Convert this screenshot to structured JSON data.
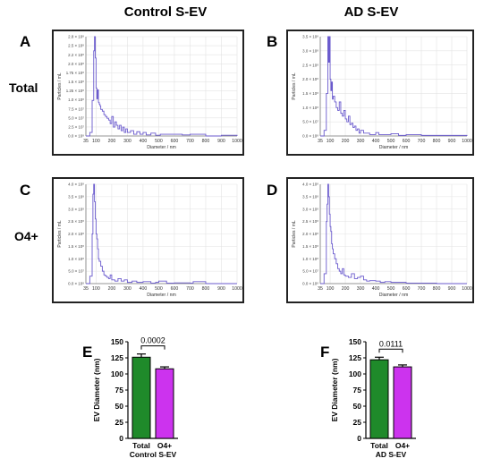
{
  "headers": {
    "control": "Control S-EV",
    "ad": "AD S-EV"
  },
  "rows": {
    "total": "Total",
    "o4": "O4+"
  },
  "panel_letters": {
    "a": "A",
    "b": "B",
    "c": "C",
    "d": "D",
    "e": "E",
    "f": "F"
  },
  "colors": {
    "trace": "#6a5acd",
    "grid": "#e3e3e3",
    "total_bar": "#1f8a2a",
    "o4_bar": "#cc33ee"
  },
  "chart_data": [
    {
      "id": "A",
      "type": "line",
      "xlabel": "Diameter / nm",
      "ylabel": "Particles / mL",
      "x_ticks": [
        35,
        100,
        200,
        300,
        400,
        500,
        600,
        700,
        800,
        900,
        1000
      ],
      "y_ticks": [
        "0.0 × 10⁸",
        "2.5 × 10⁷",
        "5.0 × 10⁷",
        "7.5 × 10⁷",
        "1.0 × 10⁸",
        "1.25 × 10⁸",
        "1.5 × 10⁸",
        "1.75 × 10⁸",
        "2.0 × 10⁸",
        "2.2 × 10⁸",
        "2.5 × 10⁸",
        "2.8 × 10⁸"
      ],
      "ylim": [
        0,
        2.8
      ],
      "x": [
        35,
        60,
        75,
        85,
        90,
        95,
        100,
        105,
        110,
        115,
        120,
        125,
        130,
        140,
        150,
        160,
        170,
        180,
        190,
        200,
        210,
        220,
        230,
        240,
        250,
        260,
        270,
        280,
        290,
        300,
        320,
        340,
        360,
        380,
        400,
        420,
        450,
        480,
        510,
        560,
        650,
        700,
        800,
        900,
        1000
      ],
      "y": [
        0,
        0.1,
        1.0,
        2.4,
        2.8,
        2.2,
        1.35,
        1.05,
        1.3,
        0.95,
        0.9,
        0.85,
        0.75,
        0.7,
        0.6,
        0.55,
        0.5,
        0.45,
        0.35,
        0.55,
        0.25,
        0.4,
        0.3,
        0.2,
        0.3,
        0.15,
        0.25,
        0.1,
        0.2,
        0.1,
        0.15,
        0.05,
        0.12,
        0.05,
        0.1,
        0.03,
        0.08,
        0.02,
        0.05,
        0.05,
        0.03,
        0.05,
        0.0,
        0.02,
        0.0
      ]
    },
    {
      "id": "B",
      "type": "line",
      "xlabel": "Diameter / nm",
      "ylabel": "Particles / mL",
      "x_ticks": [
        35,
        100,
        200,
        300,
        400,
        500,
        600,
        700,
        800,
        900,
        1000
      ],
      "y_ticks": [
        "0.0 × 10⁸",
        "5.0 × 10⁷",
        "1.0 × 10⁸",
        "1.5 × 10⁸",
        "2.0 × 10⁸",
        "2.5 × 10⁸",
        "3.0 × 10⁸",
        "3.5 × 10⁸"
      ],
      "ylim": [
        0,
        3.5
      ],
      "x": [
        35,
        60,
        75,
        85,
        90,
        95,
        100,
        105,
        110,
        115,
        120,
        130,
        140,
        150,
        160,
        170,
        180,
        190,
        200,
        210,
        220,
        230,
        240,
        250,
        260,
        270,
        280,
        290,
        300,
        320,
        340,
        360,
        400,
        420,
        450,
        500,
        550,
        600,
        700,
        800,
        1000
      ],
      "y": [
        0,
        0.2,
        1.5,
        3.5,
        2.6,
        3.5,
        2.0,
        1.6,
        1.9,
        1.3,
        1.4,
        1.2,
        1.0,
        0.9,
        1.2,
        0.8,
        0.7,
        0.9,
        0.6,
        0.5,
        0.7,
        0.4,
        0.45,
        0.3,
        0.35,
        0.2,
        0.25,
        0.1,
        0.2,
        0.1,
        0.1,
        0.05,
        0.12,
        0.05,
        0.05,
        0.08,
        0.02,
        0.05,
        0.02,
        0.02,
        0.0
      ]
    },
    {
      "id": "C",
      "type": "line",
      "xlabel": "Diameter / nm",
      "ylabel": "Particles / mL",
      "x_ticks": [
        35,
        100,
        200,
        300,
        400,
        500,
        600,
        700,
        800,
        900,
        1000
      ],
      "y_ticks": [
        "0.0 × 10⁸",
        "5.0 × 10⁷",
        "1.0 × 10⁸",
        "1.5 × 10⁸",
        "2.0 × 10⁸",
        "2.5 × 10⁸",
        "3.0 × 10⁸",
        "3.5 × 10⁸",
        "4.0 × 10⁸"
      ],
      "ylim": [
        0,
        4.0
      ],
      "x": [
        35,
        60,
        75,
        80,
        85,
        90,
        95,
        100,
        105,
        110,
        115,
        120,
        130,
        140,
        150,
        160,
        170,
        180,
        190,
        200,
        220,
        240,
        260,
        280,
        300,
        330,
        360,
        400,
        450,
        480,
        500,
        550,
        600,
        700,
        720,
        800,
        1000
      ],
      "y": [
        0,
        0.3,
        2.0,
        3.6,
        4.0,
        3.3,
        2.6,
        2.0,
        1.8,
        1.4,
        1.0,
        0.9,
        0.7,
        0.5,
        0.35,
        0.3,
        0.25,
        0.2,
        0.35,
        0.15,
        0.1,
        0.2,
        0.1,
        0.15,
        0.05,
        0.1,
        0.05,
        0.08,
        0.02,
        0.05,
        0.1,
        0.02,
        0.03,
        0.02,
        0.08,
        0.0,
        0.0
      ]
    },
    {
      "id": "D",
      "type": "line",
      "xlabel": "Diameter / nm",
      "ylabel": "Particles / mL",
      "x_ticks": [
        35,
        100,
        200,
        300,
        400,
        500,
        600,
        700,
        800,
        900,
        1000
      ],
      "y_ticks": [
        "0.0 × 10⁸",
        "5.0 × 10⁷",
        "1.0 × 10⁸",
        "1.5 × 10⁸",
        "2.0 × 10⁸",
        "2.5 × 10⁸",
        "3.0 × 10⁸",
        "3.5 × 10⁸",
        "4.0 × 10⁸"
      ],
      "ylim": [
        0,
        4.0
      ],
      "x": [
        35,
        60,
        75,
        80,
        85,
        90,
        95,
        100,
        105,
        110,
        115,
        120,
        130,
        140,
        150,
        160,
        170,
        180,
        190,
        200,
        220,
        240,
        260,
        280,
        300,
        320,
        340,
        360,
        400,
        430,
        460,
        500,
        560,
        600,
        700,
        800,
        1000
      ],
      "y": [
        0,
        0.4,
        2.5,
        3.2,
        4.0,
        3.5,
        2.8,
        2.3,
        2.1,
        1.6,
        1.4,
        1.2,
        1.0,
        0.8,
        0.6,
        0.5,
        0.4,
        0.6,
        0.35,
        0.3,
        0.25,
        0.4,
        0.2,
        0.25,
        0.3,
        0.15,
        0.1,
        0.12,
        0.1,
        0.05,
        0.08,
        0.05,
        0.05,
        0.02,
        0.02,
        0.0,
        0.0
      ]
    },
    {
      "id": "E",
      "type": "bar",
      "categories": [
        "Total",
        "O4+"
      ],
      "values": [
        126,
        108
      ],
      "errors": [
        5,
        3
      ],
      "ylabel": "EV Diameter (nm)",
      "xlabel": "Control S-EV",
      "ylim": [
        0,
        150
      ],
      "y_ticks": [
        0,
        25,
        50,
        75,
        100,
        125,
        150
      ],
      "annotation": "0.0002"
    },
    {
      "id": "F",
      "type": "bar",
      "categories": [
        "Total",
        "O4+"
      ],
      "values": [
        122,
        111
      ],
      "errors": [
        4,
        3
      ],
      "ylabel": "EV Diameter (nm)",
      "xlabel": "AD S-EV",
      "ylim": [
        0,
        150
      ],
      "y_ticks": [
        0,
        25,
        50,
        75,
        100,
        125,
        150
      ],
      "annotation": "0.0111"
    }
  ]
}
